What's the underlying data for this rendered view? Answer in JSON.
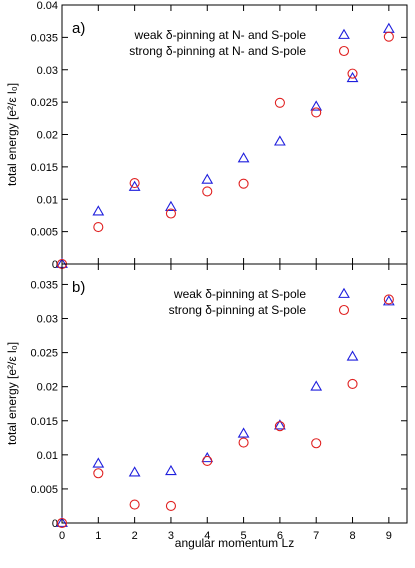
{
  "chart_data": [
    {
      "type": "scatter",
      "panel_label": "a)",
      "ylabel": "total energy [e²/ε l₀]",
      "xlabel": "",
      "xlim": [
        0,
        9.5
      ],
      "ylim": [
        0,
        0.04
      ],
      "x_ticks": [],
      "y_ticks": [
        "0",
        "0.005",
        "0.01",
        "0.015",
        "0.02",
        "0.025",
        "0.03",
        "0.035",
        "0.04"
      ],
      "legend_position": "top-right",
      "grid": false,
      "series": [
        {
          "name": "weak δ-pinning at N- and S-pole",
          "marker": "triangle",
          "color": "#1f1fdd",
          "x": [
            0,
            1,
            2,
            3,
            4,
            5,
            6,
            7,
            8,
            9
          ],
          "y": [
            0.0,
            0.0081,
            0.0119,
            0.0088,
            0.013,
            0.0163,
            0.0189,
            0.0243,
            0.0287,
            0.0363
          ]
        },
        {
          "name": "strong δ-pinning at N- and S-pole",
          "marker": "circle",
          "color": "#e02020",
          "x": [
            0,
            1,
            2,
            3,
            4,
            5,
            6,
            7,
            8,
            9
          ],
          "y": [
            0.0,
            0.0057,
            0.0125,
            0.0078,
            0.0112,
            0.0124,
            0.0249,
            0.0234,
            0.0294,
            0.0351
          ]
        }
      ]
    },
    {
      "type": "scatter",
      "panel_label": "b)",
      "ylabel": "total energy [e²/ε l₀]",
      "xlabel": "angular momentum Lz",
      "xlim": [
        0,
        9.5
      ],
      "ylim": [
        0,
        0.038
      ],
      "x_ticks": [
        "0",
        "1",
        "2",
        "3",
        "4",
        "5",
        "6",
        "7",
        "8",
        "9"
      ],
      "y_ticks": [
        "0",
        "0.005",
        "0.01",
        "0.015",
        "0.02",
        "0.025",
        "0.03",
        "0.035"
      ],
      "legend_position": "top-right",
      "grid": false,
      "series": [
        {
          "name": "weak δ-pinning at S-pole",
          "marker": "triangle",
          "color": "#1f1fdd",
          "x": [
            0,
            1,
            2,
            3,
            4,
            5,
            6,
            7,
            8,
            9
          ],
          "y": [
            0.0,
            0.0087,
            0.0074,
            0.0076,
            0.0095,
            0.0131,
            0.0143,
            0.02,
            0.0244,
            0.0325
          ]
        },
        {
          "name": "strong δ-pinning at S-pole",
          "marker": "circle",
          "color": "#e02020",
          "x": [
            0,
            1,
            2,
            3,
            4,
            5,
            6,
            7,
            8,
            9
          ],
          "y": [
            0.0,
            0.0073,
            0.0027,
            0.0025,
            0.0091,
            0.0118,
            0.0142,
            0.0117,
            0.0204,
            0.0328
          ]
        }
      ]
    }
  ]
}
